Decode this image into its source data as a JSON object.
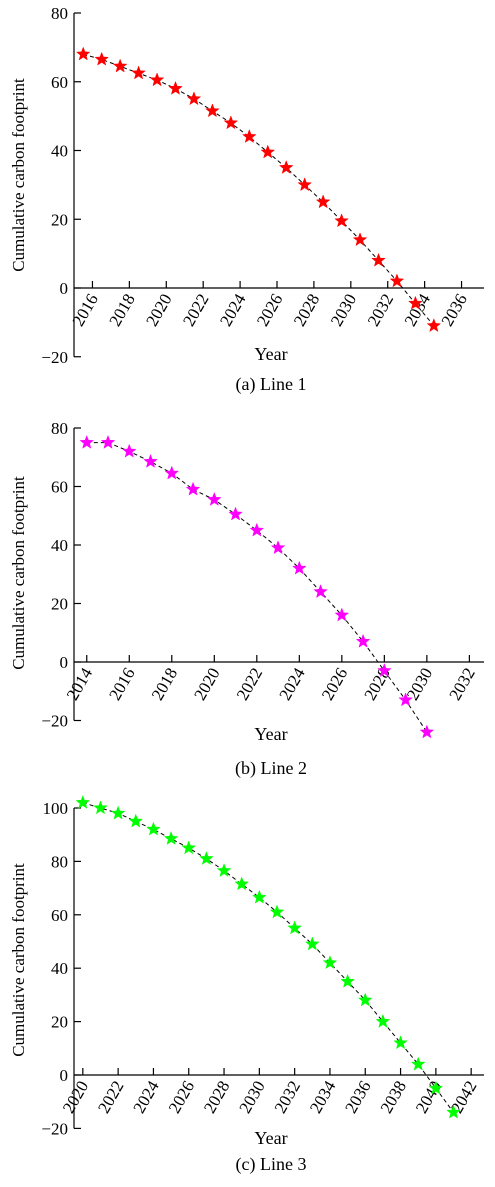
{
  "chart_data": [
    {
      "type": "line",
      "caption": "(a) Line 1",
      "xlabel": "Year",
      "ylabel": "Cumulative carbon footprint",
      "xlim": [
        2015,
        2037
      ],
      "ylim": [
        -20,
        80
      ],
      "xticks": [
        "2016",
        "2018",
        "2020",
        "2022",
        "2024",
        "2026",
        "2028",
        "2030",
        "2032",
        "2034",
        "2036"
      ],
      "yticks": [
        "−20",
        "0",
        "20",
        "40",
        "60",
        "80"
      ],
      "marker_color": "#ff0000",
      "series": [
        {
          "x": [
            2015.5,
            2016.5,
            2017.5,
            2018.5,
            2019.5,
            2020.5,
            2021.5,
            2022.5,
            2023.5,
            2024.5,
            2025.5,
            2026.5,
            2027.5,
            2028.5,
            2029.5,
            2030.5,
            2031.5,
            2032.5,
            2033.5,
            2034.5
          ],
          "y": [
            68,
            66.5,
            64.5,
            62.5,
            60.5,
            58,
            55,
            51.5,
            48,
            44,
            39.5,
            35,
            30,
            25,
            19.5,
            14,
            8,
            2,
            -4.5,
            -11
          ]
        }
      ]
    },
    {
      "type": "line",
      "caption": "(b) Line 2",
      "xlabel": "Year",
      "ylabel": "Cumulative carbon footprint",
      "xlim": [
        2013.4,
        2032.5
      ],
      "ylim": [
        -20,
        80
      ],
      "xticks": [
        "2014",
        "2016",
        "2018",
        "2020",
        "2022",
        "2024",
        "2026",
        "2028",
        "2030",
        "2032"
      ],
      "yticks": [
        "−20",
        "0",
        "20",
        "40",
        "60",
        "80"
      ],
      "marker_color": "#ff00ff",
      "series": [
        {
          "x": [
            2014,
            2015,
            2016,
            2017,
            2018,
            2019,
            2020,
            2021,
            2022,
            2023,
            2024,
            2025,
            2026,
            2027,
            2028,
            2029,
            2030
          ],
          "y": [
            75,
            75,
            72,
            68.5,
            64.5,
            59,
            55.5,
            50.5,
            45,
            39,
            32,
            24,
            16,
            7,
            -3,
            -13,
            -24
          ]
        }
      ]
    },
    {
      "type": "line",
      "caption": "(c) Line 3",
      "xlabel": "Year",
      "ylabel": "Cumulative carbon footprint",
      "xlim": [
        2019.5,
        2042.5
      ],
      "ylim": [
        -20,
        100
      ],
      "xticks": [
        "2020",
        "2022",
        "2024",
        "2026",
        "2028",
        "2030",
        "2032",
        "2034",
        "2036",
        "2038",
        "2040",
        "2042"
      ],
      "yticks": [
        "−20",
        "0",
        "20",
        "40",
        "60",
        "80",
        "100"
      ],
      "marker_color": "#00ff00",
      "series": [
        {
          "x": [
            2020,
            2021,
            2022,
            2023,
            2024,
            2025,
            2026,
            2027,
            2028,
            2029,
            2030,
            2031,
            2032,
            2033,
            2034,
            2035,
            2036,
            2037,
            2038,
            2039,
            2040,
            2041
          ],
          "y": [
            102,
            100,
            98,
            95,
            92,
            88.5,
            85,
            81,
            76.5,
            71.5,
            66.5,
            61,
            55,
            49,
            42,
            35,
            28,
            20,
            12,
            4,
            -5,
            -14
          ]
        }
      ]
    }
  ]
}
